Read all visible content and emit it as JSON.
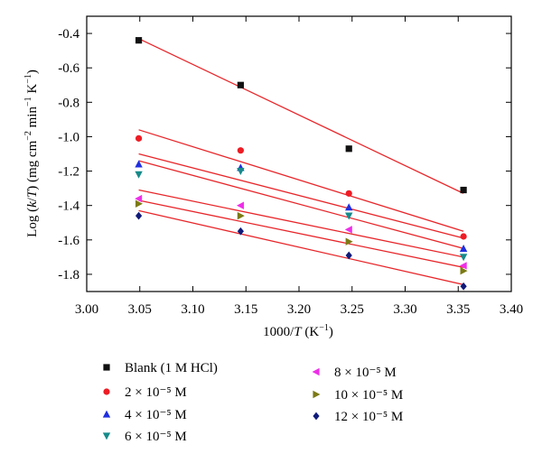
{
  "chart_data": {
    "type": "scatter",
    "title": "",
    "xlabel": "1000/T (K⁻¹)",
    "ylabel": "Log (k/T) (mg cm⁻² min⁻¹ K⁻¹)",
    "xlim": [
      3.0,
      3.4
    ],
    "ylim": [
      -1.9,
      -0.3
    ],
    "xticks": [
      "3.00",
      "3.05",
      "3.10",
      "3.15",
      "3.20",
      "3.25",
      "3.30",
      "3.35",
      "3.40"
    ],
    "yticks": [
      "-0.4",
      "-0.6",
      "-0.8",
      "-1.0",
      "-1.2",
      "-1.4",
      "-1.6",
      "-1.8"
    ],
    "x": [
      3.049,
      3.145,
      3.247,
      3.355
    ],
    "fit_line_color": "#e8262a",
    "legend_position": "bottom",
    "series": [
      {
        "name": "Blank (1 M HCl)",
        "marker": "square",
        "color": "#111111",
        "values": [
          -0.44,
          -0.7,
          -1.07,
          -1.31
        ],
        "fit": [
          -0.43,
          -1.33
        ]
      },
      {
        "name": "2 × 10⁻⁵ M",
        "marker": "circle",
        "color": "#ee1c24",
        "values": [
          -1.01,
          -1.08,
          -1.33,
          -1.58
        ],
        "fit": [
          -0.96,
          -1.55
        ]
      },
      {
        "name": "4 × 10⁻⁵ M",
        "marker": "triangle-up",
        "color": "#1f2fe0",
        "values": [
          -1.16,
          -1.18,
          -1.41,
          -1.65
        ],
        "fit": [
          -1.1,
          -1.59
        ]
      },
      {
        "name": "6 × 10⁻⁵ M",
        "marker": "triangle-down",
        "color": "#178a8a",
        "values": [
          -1.22,
          -1.2,
          -1.46,
          -1.7
        ],
        "fit": [
          -1.14,
          -1.65
        ]
      },
      {
        "name": "8 × 10⁻⁵ M",
        "marker": "triangle-left",
        "color": "#ee2ee8",
        "values": [
          -1.36,
          -1.4,
          -1.54,
          -1.75
        ],
        "fit": [
          -1.31,
          -1.7
        ]
      },
      {
        "name": "10 × 10⁻⁵ M",
        "marker": "triangle-right",
        "color": "#7b7a15",
        "values": [
          -1.39,
          -1.46,
          -1.61,
          -1.78
        ],
        "fit": [
          -1.37,
          -1.76
        ]
      },
      {
        "name": "12 × 10⁻⁵ M",
        "marker": "diamond",
        "color": "#101a7a",
        "values": [
          -1.46,
          -1.55,
          -1.69,
          -1.87
        ],
        "fit": [
          -1.43,
          -1.86
        ]
      }
    ]
  }
}
